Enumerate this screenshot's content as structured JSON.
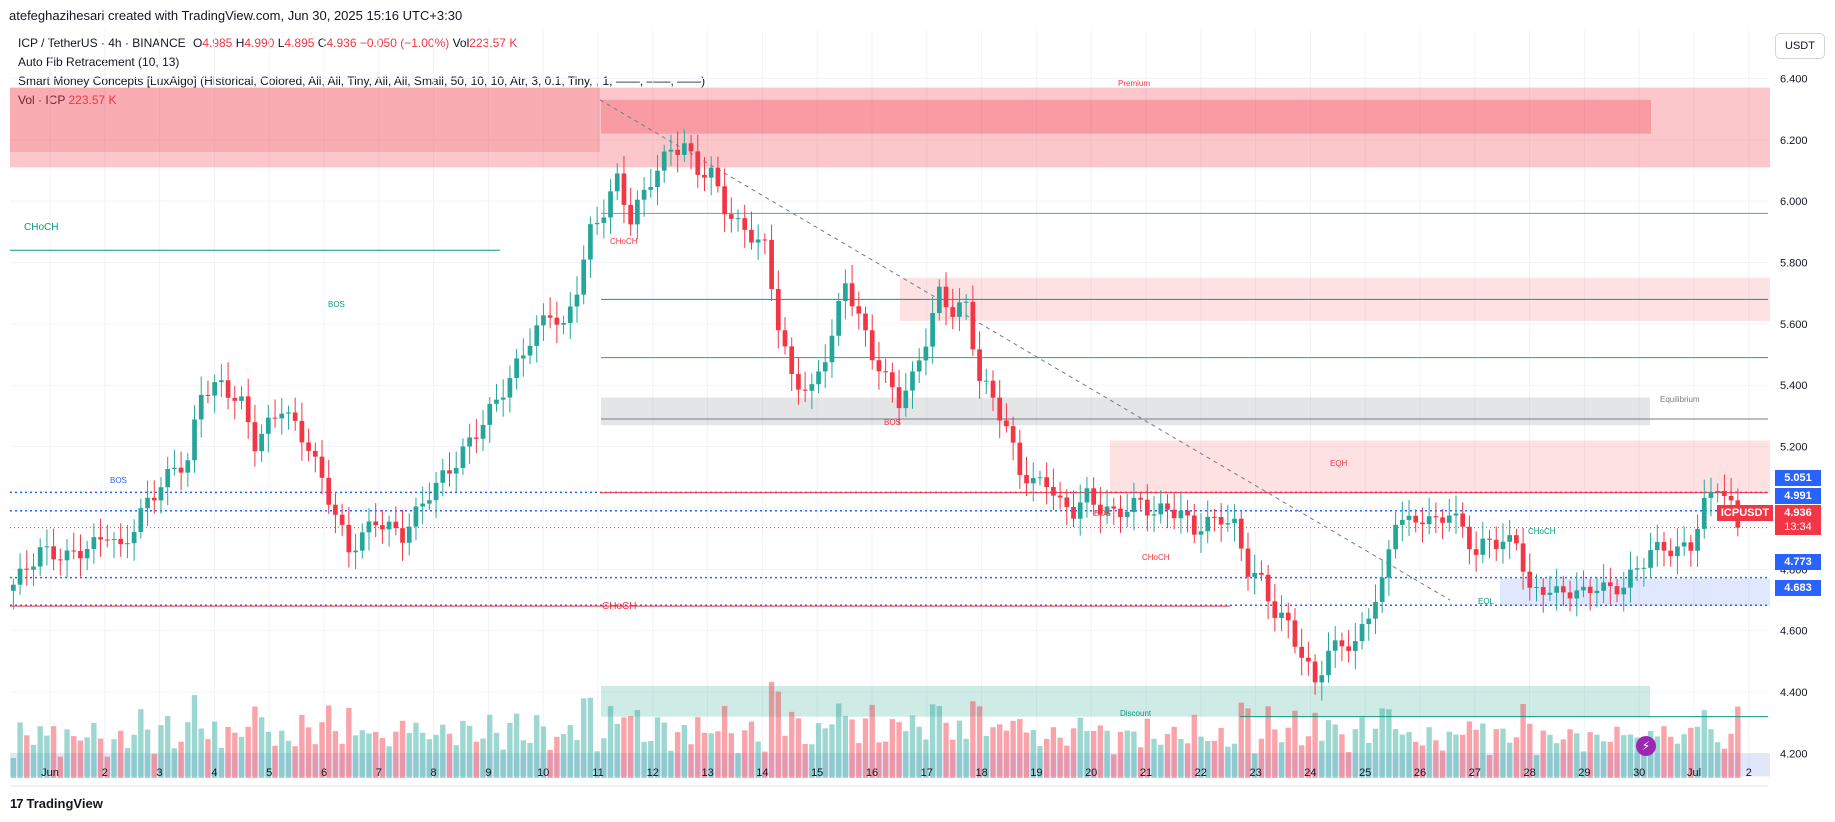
{
  "header": {
    "creator": "atefeghazihesari created with TradingView.com, Jun 30, 2025 15:16 UTC+3:30"
  },
  "legend": {
    "symbol": "ICP / TetherUS · 4h · BINANCE",
    "ohlc": {
      "o_label": "O",
      "o": "4.985",
      "h_label": "H",
      "h": "4.990",
      "l_label": "L",
      "l": "4.895",
      "c_label": "C",
      "c": "4.936",
      "change": "−0.050 (−1.00%)",
      "vol_label": "Vol",
      "vol": "223.57 K"
    },
    "indicators": [
      "Auto Fib Retracement (10, 13)",
      "Smart Money Concepts [LuxAlgo] (Historical, Colored, All, All, Tiny, All, All, Small, 50, 10, 10, Atr, 3, 0.1, Tiny, , 1, ——, ——, ——)"
    ],
    "vol_row": {
      "label": "Vol · ICP",
      "value": "223.57 K"
    }
  },
  "currency": "USDT",
  "price_tags": {
    "p1": "5.051",
    "p2": "4.991",
    "p3": "4.936",
    "p4": "4.773",
    "p5": "4.683",
    "symbol_tag": "ICPUSDT",
    "countdown": "13:34"
  },
  "footer": {
    "logo": "TradingView",
    "logo_mark": "17"
  },
  "colors": {
    "up": "#26a69a",
    "down": "#f23645",
    "premium": "#f23645",
    "discount": "#089981",
    "fib_blue": "#2962ff"
  },
  "chart_data": {
    "type": "candlestick",
    "timeframe": "4h",
    "ylim": [
      4.12,
      6.46
    ],
    "y_ticks": [
      4.2,
      4.4,
      4.6,
      4.8,
      5.0,
      5.2,
      5.4,
      5.6,
      5.8,
      6.0,
      6.2,
      6.4
    ],
    "y_tick_labels": [
      "4.200",
      "4.400",
      "4.600",
      "4.800",
      "",
      "5.200",
      "5.400",
      "5.600",
      "5.800",
      "6.000",
      "6.200",
      "6.400"
    ],
    "x_labels": [
      "Jun",
      "2",
      "3",
      "4",
      "5",
      "6",
      "7",
      "8",
      "9",
      "10",
      "11",
      "12",
      "13",
      "14",
      "15",
      "16",
      "17",
      "18",
      "19",
      "20",
      "21",
      "22",
      "23",
      "24",
      "25",
      "26",
      "27",
      "28",
      "29",
      "30",
      "Jul",
      "2"
    ],
    "key_closes": [
      [
        0,
        4.75
      ],
      [
        4,
        4.86
      ],
      [
        8,
        4.84
      ],
      [
        12,
        4.88
      ],
      [
        14,
        4.92
      ],
      [
        16,
        4.86
      ],
      [
        20,
        5.02
      ],
      [
        24,
        5.13
      ],
      [
        26,
        5.15
      ],
      [
        28,
        5.38
      ],
      [
        31,
        5.4
      ],
      [
        34,
        5.34
      ],
      [
        36,
        5.21
      ],
      [
        40,
        5.33
      ],
      [
        44,
        5.2
      ],
      [
        48,
        4.98
      ],
      [
        50,
        4.86
      ],
      [
        54,
        4.96
      ],
      [
        58,
        4.91
      ],
      [
        62,
        5.05
      ],
      [
        66,
        5.15
      ],
      [
        70,
        5.28
      ],
      [
        74,
        5.42
      ],
      [
        77,
        5.55
      ],
      [
        80,
        5.64
      ],
      [
        82,
        5.58
      ],
      [
        84,
        5.72
      ],
      [
        86,
        5.9
      ],
      [
        88,
        5.97
      ],
      [
        90,
        6.07
      ],
      [
        92,
        5.94
      ],
      [
        95,
        6.07
      ],
      [
        98,
        6.17
      ],
      [
        100,
        6.18
      ],
      [
        102,
        6.1
      ],
      [
        104,
        6.09
      ],
      [
        106,
        5.98
      ],
      [
        108,
        5.92
      ],
      [
        110,
        5.89
      ],
      [
        112,
        5.85
      ],
      [
        114,
        5.6
      ],
      [
        116,
        5.42
      ],
      [
        119,
        5.38
      ],
      [
        122,
        5.56
      ],
      [
        124,
        5.74
      ],
      [
        126,
        5.62
      ],
      [
        128,
        5.5
      ],
      [
        130,
        5.42
      ],
      [
        132,
        5.35
      ],
      [
        134,
        5.42
      ],
      [
        136,
        5.55
      ],
      [
        138,
        5.7
      ],
      [
        140,
        5.64
      ],
      [
        142,
        5.66
      ],
      [
        144,
        5.42
      ],
      [
        146,
        5.36
      ],
      [
        148,
        5.26
      ],
      [
        150,
        5.12
      ],
      [
        152,
        5.08
      ],
      [
        154,
        5.09
      ],
      [
        156,
        5.01
      ],
      [
        158,
        4.99
      ],
      [
        160,
        5.04
      ],
      [
        162,
        5.0
      ],
      [
        164,
        4.98
      ],
      [
        166,
        5.0
      ],
      [
        168,
        5.02
      ],
      [
        170,
        4.98
      ],
      [
        172,
        5.0
      ],
      [
        174,
        4.98
      ],
      [
        176,
        4.93
      ],
      [
        178,
        4.95
      ],
      [
        180,
        4.97
      ],
      [
        182,
        4.94
      ],
      [
        184,
        4.8
      ],
      [
        186,
        4.76
      ],
      [
        188,
        4.66
      ],
      [
        190,
        4.62
      ],
      [
        192,
        4.52
      ],
      [
        194,
        4.43
      ],
      [
        196,
        4.53
      ],
      [
        198,
        4.56
      ],
      [
        200,
        4.55
      ],
      [
        202,
        4.66
      ],
      [
        204,
        4.75
      ],
      [
        206,
        4.97
      ],
      [
        208,
        4.95
      ],
      [
        210,
        4.97
      ],
      [
        212,
        4.95
      ],
      [
        214,
        4.99
      ],
      [
        216,
        4.93
      ],
      [
        218,
        4.85
      ],
      [
        220,
        4.9
      ],
      [
        222,
        4.88
      ],
      [
        224,
        4.9
      ],
      [
        226,
        4.72
      ],
      [
        228,
        4.74
      ],
      [
        230,
        4.72
      ],
      [
        232,
        4.73
      ],
      [
        234,
        4.72
      ],
      [
        236,
        4.75
      ],
      [
        238,
        4.73
      ],
      [
        240,
        4.75
      ],
      [
        242,
        4.8
      ],
      [
        244,
        4.86
      ],
      [
        246,
        4.87
      ],
      [
        248,
        4.86
      ],
      [
        250,
        4.88
      ],
      [
        252,
        5.01
      ],
      [
        254,
        5.08
      ],
      [
        256,
        5.0
      ],
      [
        257,
        4.936
      ]
    ],
    "zones": [
      {
        "name": "Premium",
        "from": 6.11,
        "to": 6.37
      },
      {
        "name": "Equilibrium",
        "from": 5.27,
        "to": 5.36
      },
      {
        "name": "Discount",
        "from": 4.32,
        "to": 4.42
      }
    ],
    "annotations": [
      "Premium",
      "Equilibrium",
      "Discount",
      "CHoCH",
      "CHoCH",
      "BOS",
      "CHoCH",
      "BOS",
      "BOS",
      "EQH",
      "CHoCH",
      "EQL",
      "BOS",
      "CHoCH"
    ]
  }
}
